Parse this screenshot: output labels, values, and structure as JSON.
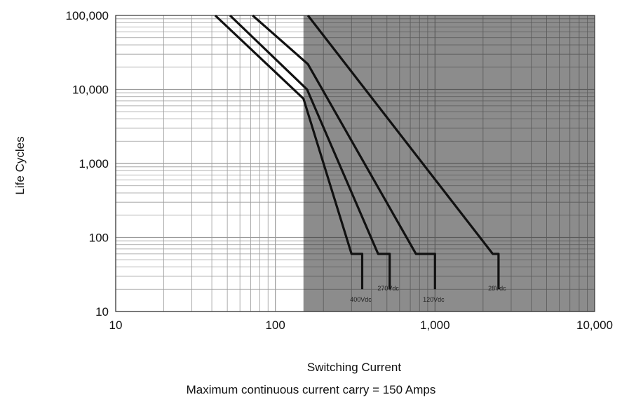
{
  "chart_data": {
    "type": "line",
    "title": "",
    "xlabel": "Switching Current",
    "ylabel": "Life Cycles",
    "x_scale": "log",
    "y_scale": "log",
    "xlim": [
      10,
      10000
    ],
    "ylim": [
      10,
      100000
    ],
    "grid": true,
    "x_ticks": [
      {
        "value": 10,
        "label": "10"
      },
      {
        "value": 100,
        "label": "100"
      },
      {
        "value": 1000,
        "label": "1,000"
      },
      {
        "value": 10000,
        "label": "10,000"
      }
    ],
    "y_ticks": [
      {
        "value": 10,
        "label": "10"
      },
      {
        "value": 100,
        "label": "100"
      },
      {
        "value": 1000,
        "label": "1,000"
      },
      {
        "value": 10000,
        "label": "10,000"
      },
      {
        "value": 100000,
        "label": "100,000"
      }
    ],
    "shaded_region": {
      "x_from": 150,
      "x_to": 10000,
      "color": "#8c8c8c"
    },
    "series": [
      {
        "name": "400Vdc",
        "points": [
          [
            42,
            100000
          ],
          [
            150,
            7500
          ],
          [
            300,
            60
          ],
          [
            350,
            60
          ],
          [
            350,
            20
          ]
        ]
      },
      {
        "name": "270Vdc",
        "points": [
          [
            52,
            100000
          ],
          [
            158,
            10000
          ],
          [
            440,
            60
          ],
          [
            520,
            60
          ],
          [
            520,
            20
          ]
        ]
      },
      {
        "name": "120Vdc",
        "points": [
          [
            72,
            100000
          ],
          [
            160,
            22000
          ],
          [
            760,
            60
          ],
          [
            1000,
            60
          ],
          [
            1000,
            20
          ]
        ]
      },
      {
        "name": "28Vdc",
        "points": [
          [
            160,
            100000
          ],
          [
            2300,
            60
          ],
          [
            2500,
            60
          ],
          [
            2500,
            20
          ]
        ]
      }
    ],
    "colors": {
      "line": "#111111",
      "grid_light": "#9a9a9a",
      "grid_dark": "#5a5a5a",
      "shade": "#8c8c8c"
    }
  },
  "caption": "Maximum continuous current carry = 150 Amps"
}
